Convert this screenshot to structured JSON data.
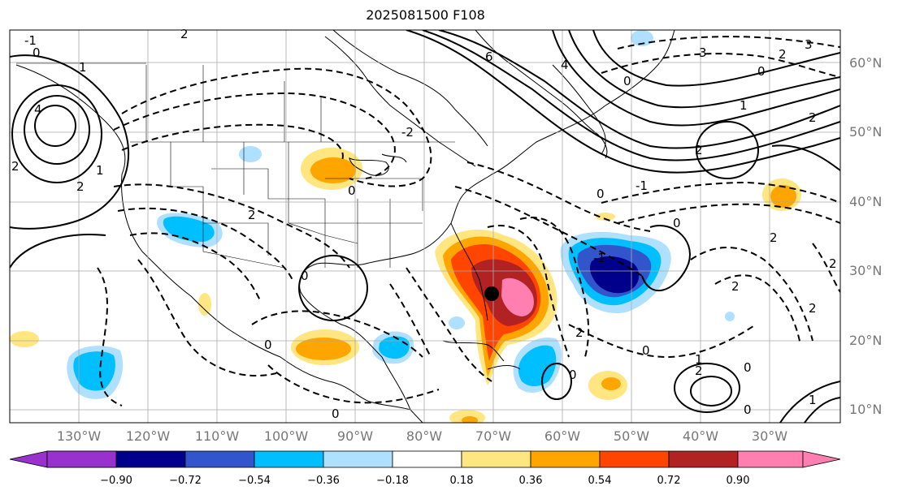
{
  "title": "2025081500 F108",
  "lat_labels": [
    "60°N",
    "50°N",
    "40°N",
    "30°N",
    "20°N",
    "10°N"
  ],
  "lon_labels": [
    "130°W",
    "120°W",
    "110°W",
    "100°W",
    "90°W",
    "80°W",
    "70°W",
    "60°W",
    "50°W",
    "40°W",
    "30°W"
  ],
  "colorbar": {
    "ticks": [
      "−0.90",
      "−0.72",
      "−0.54",
      "−0.36",
      "−0.18",
      "0.18",
      "0.36",
      "0.54",
      "0.72",
      "0.90"
    ],
    "colors": [
      "#9932cc",
      "#00008b",
      "#3355cc",
      "#00bfff",
      "#b0e0ff",
      "#ffffff",
      "#ffe680",
      "#ffa500",
      "#ff4500",
      "#b22222",
      "#ff80b0"
    ]
  },
  "marker": {
    "lon": -71,
    "lat": 26.5
  },
  "contour_labels": [
    "-1",
    "0",
    "1",
    "-2",
    "2",
    "-3",
    "3",
    "4",
    "6"
  ]
}
